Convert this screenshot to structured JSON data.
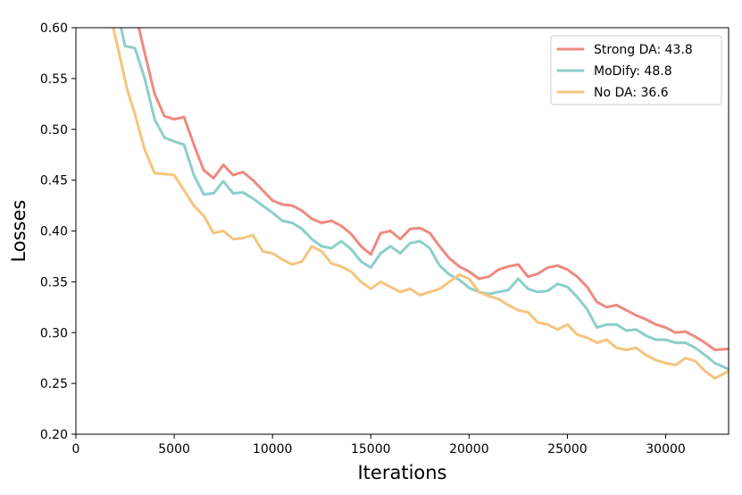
{
  "chart_data": {
    "type": "line",
    "title": "",
    "xlabel": "Iterations",
    "ylabel": "Losses",
    "xlim": [
      0,
      33200
    ],
    "ylim": [
      0.2,
      0.6
    ],
    "xticks": [
      0,
      5000,
      10000,
      15000,
      20000,
      25000,
      30000
    ],
    "yticks": [
      0.2,
      0.25,
      0.3,
      0.35,
      0.4,
      0.45,
      0.5,
      0.55,
      0.6
    ],
    "grid": false,
    "legend_position": "top-right",
    "series": [
      {
        "name": "Strong DA: 43.8",
        "color": "#ee8a80",
        "x": [
          3200,
          3500,
          4000,
          4500,
          5000,
          5500,
          6000,
          6500,
          7000,
          7500,
          8000,
          8500,
          9000,
          9500,
          10000,
          10500,
          11000,
          11500,
          12000,
          12500,
          13000,
          13500,
          14000,
          14500,
          15000,
          15500,
          16000,
          16500,
          17000,
          17500,
          18000,
          18500,
          19000,
          19500,
          20000,
          20500,
          21000,
          21500,
          22000,
          22500,
          23000,
          23500,
          24000,
          24500,
          25000,
          25500,
          26000,
          26500,
          27000,
          27500,
          28000,
          28500,
          29000,
          29500,
          30000,
          30500,
          31000,
          31500,
          32000,
          32500,
          33200
        ],
        "values": [
          0.6,
          0.575,
          0.535,
          0.513,
          0.51,
          0.512,
          0.485,
          0.46,
          0.452,
          0.465,
          0.455,
          0.458,
          0.45,
          0.44,
          0.43,
          0.426,
          0.425,
          0.42,
          0.412,
          0.408,
          0.41,
          0.405,
          0.397,
          0.385,
          0.377,
          0.398,
          0.4,
          0.392,
          0.402,
          0.403,
          0.398,
          0.385,
          0.373,
          0.365,
          0.36,
          0.353,
          0.355,
          0.362,
          0.365,
          0.367,
          0.355,
          0.358,
          0.364,
          0.366,
          0.362,
          0.355,
          0.345,
          0.33,
          0.325,
          0.327,
          0.322,
          0.317,
          0.313,
          0.308,
          0.305,
          0.3,
          0.301,
          0.296,
          0.29,
          0.283,
          0.284
        ]
      },
      {
        "name": "MoDify: 48.8",
        "color": "#8ccfc8",
        "x": [
          2300,
          2500,
          3000,
          3500,
          4000,
          4500,
          5000,
          5500,
          6000,
          6500,
          7000,
          7500,
          8000,
          8500,
          9000,
          9500,
          10000,
          10500,
          11000,
          11500,
          12000,
          12500,
          13000,
          13500,
          14000,
          14500,
          15000,
          15500,
          16000,
          16500,
          17000,
          17500,
          18000,
          18500,
          19000,
          19500,
          20000,
          20500,
          21000,
          21500,
          22000,
          22500,
          23000,
          23500,
          24000,
          24500,
          25000,
          25500,
          26000,
          26500,
          27000,
          27500,
          28000,
          28500,
          29000,
          29500,
          30000,
          30500,
          31000,
          31500,
          32000,
          32500,
          33200
        ],
        "values": [
          0.6,
          0.582,
          0.58,
          0.55,
          0.51,
          0.492,
          0.488,
          0.485,
          0.455,
          0.436,
          0.437,
          0.449,
          0.437,
          0.438,
          0.432,
          0.425,
          0.418,
          0.41,
          0.408,
          0.402,
          0.392,
          0.385,
          0.383,
          0.39,
          0.382,
          0.37,
          0.364,
          0.378,
          0.385,
          0.378,
          0.388,
          0.39,
          0.383,
          0.366,
          0.357,
          0.352,
          0.344,
          0.34,
          0.338,
          0.34,
          0.342,
          0.353,
          0.343,
          0.34,
          0.341,
          0.348,
          0.345,
          0.335,
          0.323,
          0.305,
          0.308,
          0.308,
          0.302,
          0.303,
          0.297,
          0.293,
          0.293,
          0.29,
          0.29,
          0.285,
          0.278,
          0.27,
          0.264
        ]
      },
      {
        "name": "No DA: 36.6",
        "color": "#f5c47e",
        "x": [
          1900,
          2200,
          2600,
          3000,
          3500,
          4000,
          4500,
          5000,
          5500,
          6000,
          6500,
          7000,
          7500,
          8000,
          8500,
          9000,
          9500,
          10000,
          10500,
          11000,
          11500,
          12000,
          12500,
          13000,
          13500,
          14000,
          14500,
          15000,
          15500,
          16000,
          16500,
          17000,
          17500,
          18000,
          18500,
          19000,
          19500,
          20000,
          20500,
          21000,
          21500,
          22000,
          22500,
          23000,
          23500,
          24000,
          24500,
          25000,
          25500,
          26000,
          26500,
          27000,
          27500,
          28000,
          28500,
          29000,
          29500,
          30000,
          30500,
          31000,
          31500,
          32000,
          32500,
          33200
        ],
        "values": [
          0.6,
          0.575,
          0.54,
          0.515,
          0.48,
          0.457,
          0.456,
          0.455,
          0.44,
          0.425,
          0.415,
          0.398,
          0.4,
          0.392,
          0.393,
          0.396,
          0.38,
          0.378,
          0.372,
          0.367,
          0.37,
          0.385,
          0.38,
          0.368,
          0.365,
          0.36,
          0.35,
          0.343,
          0.35,
          0.345,
          0.34,
          0.343,
          0.337,
          0.34,
          0.343,
          0.35,
          0.357,
          0.353,
          0.34,
          0.336,
          0.333,
          0.327,
          0.322,
          0.32,
          0.31,
          0.308,
          0.303,
          0.308,
          0.298,
          0.295,
          0.29,
          0.293,
          0.285,
          0.283,
          0.285,
          0.278,
          0.273,
          0.27,
          0.268,
          0.275,
          0.272,
          0.262,
          0.255,
          0.262
        ]
      }
    ]
  }
}
